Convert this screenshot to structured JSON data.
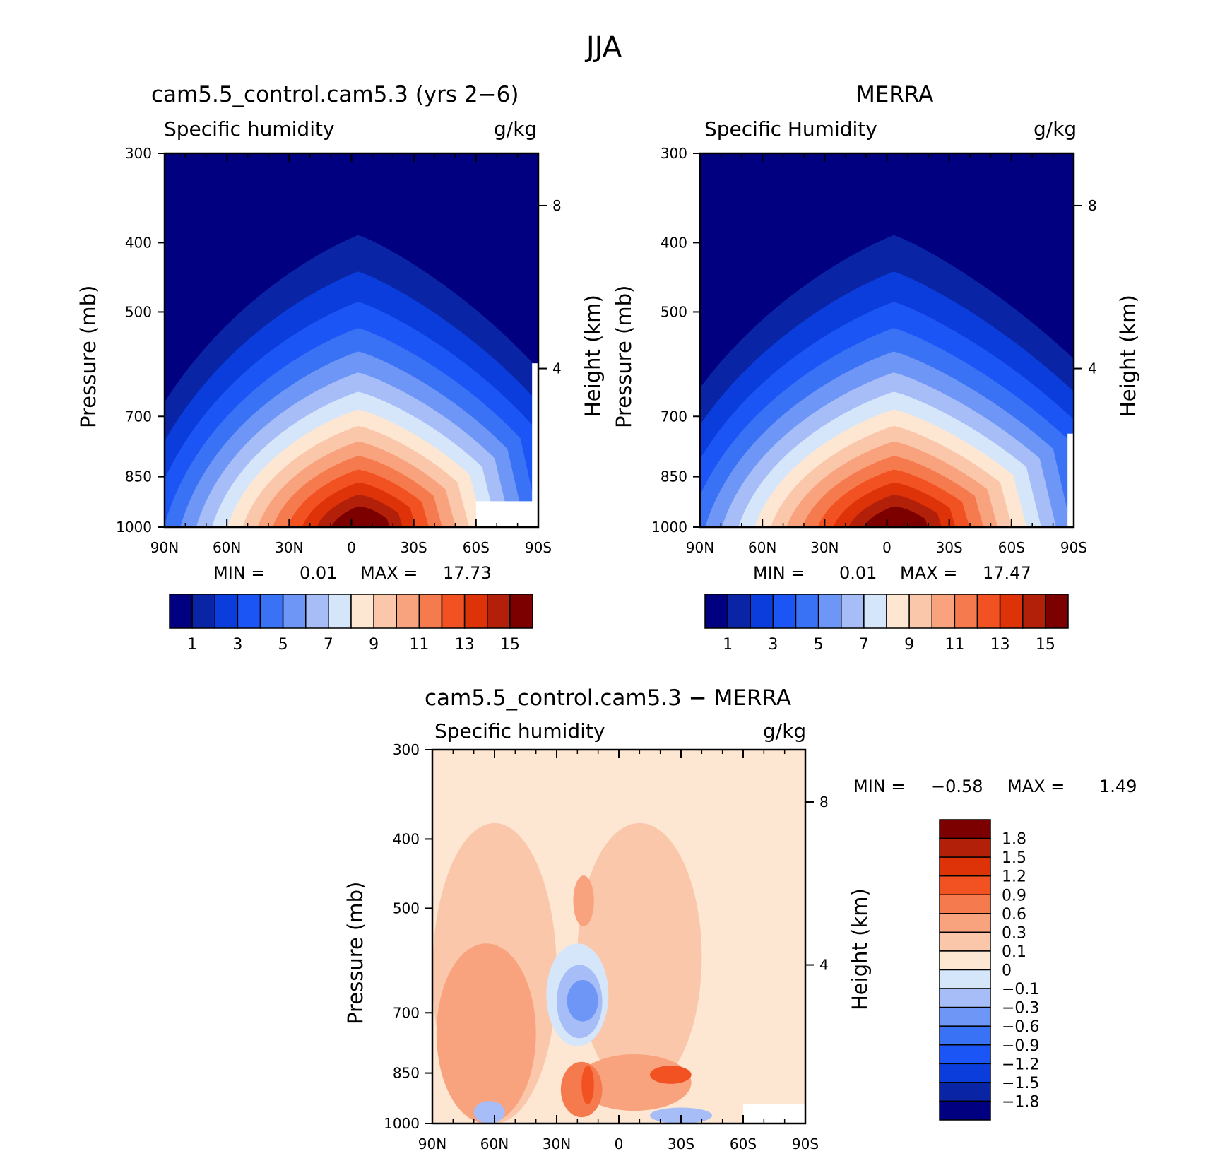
{
  "figure_title": "JJA",
  "colors": {
    "abs_levels": [
      "#000080",
      "#0a24a6",
      "#0a3ddb",
      "#1c55f5",
      "#3a72f5",
      "#6e96f7",
      "#a6bdf7",
      "#d6e6fa",
      "#fde6d2",
      "#fbc7aa",
      "#f9a37e",
      "#f57a4d",
      "#f25122",
      "#de3209",
      "#b3200a",
      "#7c0000"
    ],
    "diff_levels": [
      "#000080",
      "#0a24a6",
      "#0a3ddb",
      "#1c55f5",
      "#3a72f5",
      "#6e96f7",
      "#a6bdf7",
      "#d6e6fa",
      "#fde6d2",
      "#fbc7aa",
      "#f9a37e",
      "#f57a4d",
      "#f25122",
      "#de3209",
      "#b3200a",
      "#7c0000"
    ],
    "missing": "#ffffff"
  },
  "chart_data": [
    {
      "type": "heatmap",
      "title": "cam5.5_control.cam5.3 (yrs 2−6)",
      "variable": "Specific humidity",
      "units": "g/kg",
      "xlabel": "",
      "ylabel": "Pressure (mb)",
      "y2label": "Height (km)",
      "x_ticks": [
        "90N",
        "60N",
        "30N",
        "0",
        "30S",
        "60S",
        "90S"
      ],
      "y_ticks": [
        "300",
        "400",
        "500",
        "700",
        "850",
        "1000"
      ],
      "y2_ticks": [
        "8",
        "4"
      ],
      "y_scale": "log",
      "ylim": [
        1000,
        300
      ],
      "min_label": "MIN =",
      "min_value": "0.01",
      "max_label": "MAX =",
      "max_value": "17.73",
      "levels": [
        0,
        1,
        2,
        3,
        4,
        5,
        6,
        7,
        8,
        9,
        10,
        11,
        12,
        13,
        14,
        15,
        16
      ],
      "colorbar_labels": [
        "1",
        "3",
        "5",
        "7",
        "9",
        "11",
        "13",
        "15"
      ],
      "peak_value": 17.73,
      "peak_latitude": -5
    },
    {
      "type": "heatmap",
      "title": "MERRA",
      "variable": "Specific Humidity",
      "units": "g/kg",
      "xlabel": "",
      "ylabel": "Pressure (mb)",
      "y2label": "Height (km)",
      "x_ticks": [
        "90N",
        "60N",
        "30N",
        "0",
        "30S",
        "60S",
        "90S"
      ],
      "y_ticks": [
        "300",
        "400",
        "500",
        "700",
        "850",
        "1000"
      ],
      "y2_ticks": [
        "8",
        "4"
      ],
      "y_scale": "log",
      "ylim": [
        1000,
        300
      ],
      "min_label": "MIN =",
      "min_value": "0.01",
      "max_label": "MAX =",
      "max_value": "17.47",
      "levels": [
        0,
        1,
        2,
        3,
        4,
        5,
        6,
        7,
        8,
        9,
        10,
        11,
        12,
        13,
        14,
        15,
        16
      ],
      "colorbar_labels": [
        "1",
        "3",
        "5",
        "7",
        "9",
        "11",
        "13",
        "15"
      ],
      "peak_value": 17.47,
      "peak_latitude": -5
    },
    {
      "type": "heatmap",
      "title": "cam5.5_control.cam5.3 − MERRA",
      "variable": "Specific humidity",
      "units": "g/kg",
      "xlabel": "",
      "ylabel": "Pressure (mb)",
      "y2label": "Height (km)",
      "x_ticks": [
        "90N",
        "60N",
        "30N",
        "0",
        "30S",
        "60S",
        "90S"
      ],
      "y_ticks": [
        "300",
        "400",
        "500",
        "700",
        "850",
        "1000"
      ],
      "y2_ticks": [
        "8",
        "4"
      ],
      "y_scale": "log",
      "ylim": [
        1000,
        300
      ],
      "min_label": "MIN =",
      "min_value": "−0.58",
      "max_label": "MAX =",
      "max_value": "1.49",
      "levels": [
        -1.8,
        -1.5,
        -1.2,
        -0.9,
        -0.6,
        -0.3,
        -0.1,
        0,
        0.1,
        0.3,
        0.6,
        0.9,
        1.2,
        1.5,
        1.8
      ],
      "colorbar_labels": [
        "1.8",
        "1.5",
        "1.2",
        "0.9",
        "0.6",
        "0.3",
        "0.1",
        "0",
        "−0.1",
        "−0.3",
        "−0.6",
        "−0.9",
        "−1.2",
        "−1.5",
        "−1.8"
      ]
    }
  ]
}
